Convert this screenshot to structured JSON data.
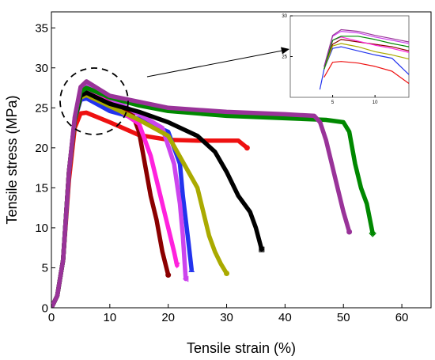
{
  "chart_data": [
    {
      "type": "line",
      "xlabel": "Tensile strain (%)",
      "ylabel": "Tensile stress (MPa)",
      "xlim": [
        0,
        65
      ],
      "ylim": [
        0,
        37
      ],
      "xticks": [
        0,
        10,
        20,
        30,
        40,
        50,
        60
      ],
      "yticks": [
        0,
        5,
        10,
        15,
        20,
        25,
        30,
        35
      ],
      "grid": false,
      "series": [
        {
          "color": "#ee1111",
          "marker": "circle",
          "x": [
            0,
            1,
            2,
            3,
            4,
            5,
            6,
            10,
            15,
            20,
            25,
            30,
            32,
            33.5
          ],
          "y": [
            0,
            1.5,
            6,
            16,
            22.5,
            24.3,
            24.4,
            23.2,
            21.6,
            21,
            20.9,
            20.9,
            20.9,
            20
          ]
        },
        {
          "color": "#8b0000",
          "marker": "circle",
          "x": [
            0,
            1,
            2,
            3,
            4,
            5,
            6,
            10,
            14,
            15,
            16,
            17,
            18,
            19,
            20
          ],
          "y": [
            0,
            1.5,
            6,
            17,
            23.5,
            26.5,
            27.1,
            25.8,
            24,
            22,
            18,
            14,
            11,
            7,
            4.1
          ]
        },
        {
          "color": "#2233ee",
          "marker": "triangle",
          "x": [
            0,
            1,
            2,
            3,
            4,
            5,
            6,
            10,
            15,
            20,
            22,
            22.5,
            23.5,
            24
          ],
          "y": [
            0,
            1.5,
            6,
            17,
            23.5,
            26,
            26.2,
            24.6,
            23.6,
            22,
            18,
            14,
            8,
            4.8
          ]
        },
        {
          "color": "#ff22dd",
          "marker": "triangle-down",
          "x": [
            0,
            1,
            2,
            3,
            4,
            5,
            6,
            10,
            15,
            17,
            18,
            19,
            20,
            21,
            21.5
          ],
          "y": [
            0,
            1.5,
            6,
            17,
            23.5,
            27,
            27.4,
            25.5,
            23,
            19,
            16,
            13,
            10,
            7,
            5.3
          ]
        },
        {
          "color": "#cc44ee",
          "marker": "triangle-left",
          "x": [
            0,
            1,
            2,
            3,
            4,
            5,
            6,
            10,
            15,
            19,
            21,
            22,
            22.5,
            23
          ],
          "y": [
            0,
            1.5,
            6,
            17,
            23.8,
            27.5,
            28.1,
            26.2,
            24.2,
            22.5,
            18,
            13,
            9,
            3.6
          ]
        },
        {
          "color": "#aaaa00",
          "marker": "circle",
          "x": [
            0,
            1,
            2,
            3,
            4,
            5,
            6,
            10,
            15,
            20,
            25,
            26,
            27,
            28,
            29,
            30
          ],
          "y": [
            0,
            1.5,
            6,
            17,
            23.5,
            26.3,
            26.6,
            25.2,
            23.5,
            21.5,
            15,
            12,
            9,
            7,
            5.5,
            4.3
          ]
        },
        {
          "color": "#000000",
          "marker": "square",
          "x": [
            0,
            1,
            2,
            3,
            4,
            5,
            6,
            10,
            15,
            20,
            25,
            28,
            30,
            32,
            34,
            35,
            36
          ],
          "y": [
            0,
            1.5,
            6,
            17,
            23.5,
            26.5,
            26.9,
            25.5,
            24.5,
            23.2,
            21.5,
            19.5,
            17,
            14,
            12,
            10,
            7.3
          ]
        },
        {
          "color": "#008800",
          "marker": "diamond",
          "x": [
            0,
            1,
            2,
            3,
            4,
            5,
            6,
            10,
            15,
            20,
            30,
            40,
            47,
            50,
            51,
            52,
            53,
            54,
            55
          ],
          "y": [
            0,
            1.5,
            6,
            17,
            23.5,
            27,
            27.5,
            26.3,
            25.3,
            24.6,
            24,
            23.7,
            23.5,
            23.2,
            22,
            18,
            15,
            13,
            9.3
          ]
        },
        {
          "color": "#993399",
          "marker": "circle",
          "x": [
            0,
            1,
            2,
            3,
            4,
            5,
            6,
            10,
            20,
            30,
            40,
            45,
            46,
            47,
            48,
            49,
            50,
            51
          ],
          "y": [
            0,
            1.5,
            6,
            17,
            23.8,
            27.6,
            28.3,
            26.5,
            25,
            24.5,
            24.2,
            24,
            23.2,
            21,
            18,
            15,
            12,
            9.5
          ]
        }
      ]
    },
    {
      "type": "line",
      "xlim": [
        0,
        14
      ],
      "ylim": [
        20,
        30
      ],
      "xticks": [
        5,
        10
      ],
      "yticks": [
        25,
        30
      ],
      "series": [
        {
          "color": "#ee1111",
          "x": [
            4,
            5,
            6,
            8,
            10,
            12,
            14
          ],
          "y": [
            22.5,
            24.3,
            24.4,
            24.2,
            23.8,
            23.2,
            21.7
          ]
        },
        {
          "color": "#8b0000",
          "x": [
            4,
            5,
            6,
            8,
            10,
            12,
            14
          ],
          "y": [
            23.5,
            26.5,
            27.1,
            26.8,
            26.5,
            26.2,
            25.7
          ]
        },
        {
          "color": "#2233ee",
          "x": [
            3.5,
            4,
            5,
            6,
            8,
            10,
            12,
            14
          ],
          "y": [
            21,
            23.5,
            26,
            26.2,
            25.7,
            25.2,
            24.8,
            22.8
          ]
        },
        {
          "color": "#ff22dd",
          "x": [
            4,
            5,
            6,
            8,
            10,
            12,
            14
          ],
          "y": [
            23.5,
            27,
            27.4,
            26.9,
            26.4,
            26,
            25.5
          ]
        },
        {
          "color": "#cc44ee",
          "x": [
            4,
            5,
            6,
            8,
            10,
            12,
            14
          ],
          "y": [
            23.8,
            27.5,
            28.1,
            27.9,
            27.4,
            27,
            26.6
          ]
        },
        {
          "color": "#aaaa00",
          "x": [
            4,
            5,
            6,
            8,
            10,
            12,
            14
          ],
          "y": [
            23.5,
            26.3,
            26.6,
            26.2,
            25.6,
            25.2,
            24.7
          ]
        },
        {
          "color": "#008800",
          "x": [
            4,
            5,
            6,
            8,
            10,
            12,
            14
          ],
          "y": [
            23.5,
            27,
            27.5,
            27.5,
            27.1,
            26.6,
            26.2
          ]
        },
        {
          "color": "#993399",
          "x": [
            4,
            5,
            6,
            8,
            10,
            12,
            14
          ],
          "y": [
            23.8,
            27.6,
            28.3,
            28.1,
            27.6,
            27.2,
            26.8
          ]
        }
      ]
    }
  ]
}
